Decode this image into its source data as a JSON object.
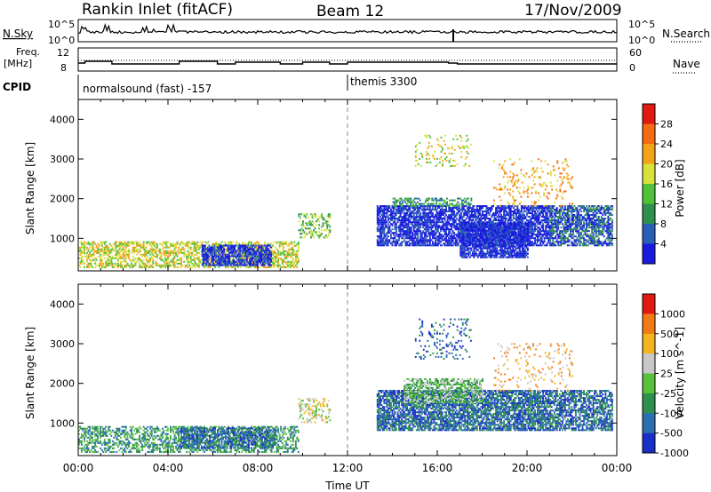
{
  "header": {
    "station": "Rankin Inlet (fitACF)",
    "beam": "Beam 12",
    "date": "17/Nov/2009"
  },
  "top_panels": {
    "nsky_label": "N.Sky",
    "nsky_ticks": [
      "10^5",
      "10^0"
    ],
    "nsearch_label": "N.Search",
    "nsearch_ticks": [
      "10^5",
      "10^0"
    ],
    "freq_label": "Freq.",
    "freq_units": "[MHz]",
    "freq_ticks": [
      "12",
      "8"
    ],
    "nave_label": "Nave",
    "nave_ticks": [
      "60",
      "0"
    ],
    "cpid_label": "CPID",
    "cpid_entries": [
      {
        "text": "normalsound (fast) -157",
        "time_h": 0
      },
      {
        "text": "themis 3300",
        "time_h": 12
      }
    ]
  },
  "chart_data": [
    {
      "type": "heatmap",
      "name": "power",
      "ylabel": "Slant Range [km]",
      "y_ticks": [
        "1000",
        "2000",
        "3000",
        "4000"
      ],
      "ylim": [
        180,
        4500
      ],
      "xlim": [
        0,
        24
      ],
      "colorbar_label": "Power [dB]",
      "colorbar_ticks": [
        "28",
        "24",
        "20",
        "16",
        "12",
        "8",
        "4"
      ],
      "colorbar_colors": [
        "#1a1adf",
        "#2a5fb8",
        "#2e8f4f",
        "#4fc23a",
        "#d9e23a",
        "#f5a21b",
        "#f36b12",
        "#e01a10"
      ],
      "bands": [
        {
          "t0": 0.0,
          "t1": 9.8,
          "r0": 250,
          "r1": 900,
          "level": 3,
          "density": 0.55
        },
        {
          "t0": 5.5,
          "t1": 8.6,
          "r0": 300,
          "r1": 800,
          "level": 7,
          "density": 0.7
        },
        {
          "t0": 9.8,
          "t1": 11.2,
          "r0": 1000,
          "r1": 1600,
          "level": 4,
          "density": 0.35
        },
        {
          "t0": 13.3,
          "t1": 21.0,
          "r0": 800,
          "r1": 1800,
          "level": 7,
          "density": 0.75
        },
        {
          "t0": 17.0,
          "t1": 20.0,
          "r0": 500,
          "r1": 1400,
          "level": 7,
          "density": 0.8
        },
        {
          "t0": 21.0,
          "t1": 23.8,
          "r0": 800,
          "r1": 1800,
          "level": 6,
          "density": 0.7
        },
        {
          "t0": 14.0,
          "t1": 17.5,
          "r0": 1800,
          "r1": 2000,
          "level": 5,
          "density": 0.5
        },
        {
          "t0": 15.0,
          "t1": 17.5,
          "r0": 2800,
          "r1": 3600,
          "level": 3,
          "density": 0.15
        },
        {
          "t0": 18.5,
          "t1": 22.0,
          "r0": 1800,
          "r1": 3000,
          "level": 2,
          "density": 0.12
        }
      ]
    },
    {
      "type": "heatmap",
      "name": "velocity",
      "xlabel": "Time UT",
      "ylabel": "Slant Range [km]",
      "x_ticks": [
        "00:00",
        "04:00",
        "08:00",
        "12:00",
        "16:00",
        "20:00",
        "00:00"
      ],
      "y_ticks": [
        "1000",
        "2000",
        "3000",
        "4000"
      ],
      "ylim": [
        180,
        4500
      ],
      "xlim": [
        0,
        24
      ],
      "colorbar_label": "Velocity [m s^-1]",
      "colorbar_ticks": [
        "1000",
        "500",
        "100",
        "25",
        "-25",
        "-100",
        "-500",
        "-1000"
      ],
      "colorbar_colors": [
        "#1a2fc8",
        "#2a6fb0",
        "#2e8f4f",
        "#58c03a",
        "#c8c8c8",
        "#f5b320",
        "#f07a14",
        "#e01a10"
      ],
      "bands": [
        {
          "t0": 0.0,
          "t1": 9.8,
          "r0": 250,
          "r1": 900,
          "level": 5,
          "density": 0.5
        },
        {
          "t0": 4.5,
          "t1": 8.8,
          "r0": 350,
          "r1": 850,
          "level": 6,
          "density": 0.6
        },
        {
          "t0": 9.8,
          "t1": 11.2,
          "r0": 1000,
          "r1": 1600,
          "level": 3,
          "density": 0.35
        },
        {
          "t0": 13.3,
          "t1": 21.0,
          "r0": 800,
          "r1": 1800,
          "level": 6,
          "density": 0.75
        },
        {
          "t0": 14.5,
          "t1": 18.0,
          "r0": 1500,
          "r1": 2100,
          "level": 4,
          "density": 0.6
        },
        {
          "t0": 21.0,
          "t1": 23.8,
          "r0": 800,
          "r1": 1800,
          "level": 6,
          "density": 0.65
        },
        {
          "t0": 15.0,
          "t1": 17.5,
          "r0": 2600,
          "r1": 3600,
          "level": 6,
          "density": 0.15
        },
        {
          "t0": 18.5,
          "t1": 22.0,
          "r0": 1800,
          "r1": 3000,
          "level": 2,
          "density": 0.1
        }
      ]
    }
  ]
}
